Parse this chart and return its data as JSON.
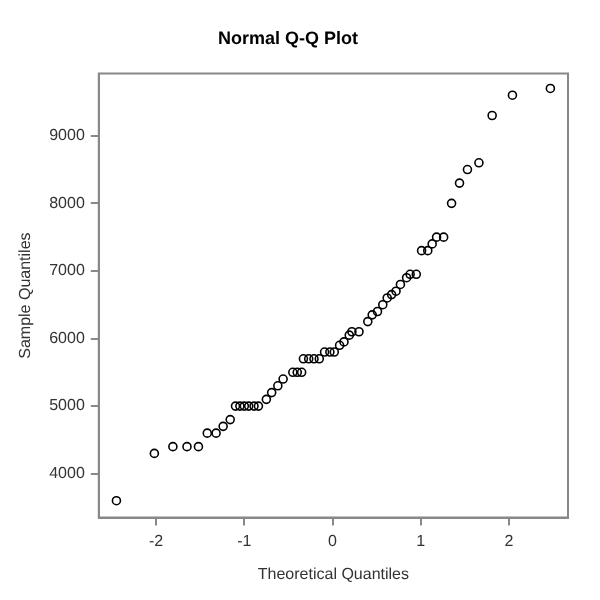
{
  "chart_data": {
    "type": "scatter",
    "title": "Normal Q-Q Plot",
    "xlabel": "Theoretical Quantiles",
    "ylabel": "Sample Quantiles",
    "x": [
      -2.45,
      -2.02,
      -1.81,
      -1.65,
      -1.52,
      -1.42,
      -1.32,
      -1.24,
      -1.16,
      -1.1,
      -1.05,
      -1.0,
      -0.95,
      -0.89,
      -0.84,
      -0.75,
      -0.69,
      -0.62,
      -0.56,
      -0.45,
      -0.4,
      -0.35,
      -0.33,
      -0.27,
      -0.21,
      -0.15,
      -0.09,
      -0.03,
      0.02,
      0.08,
      0.13,
      0.19,
      0.22,
      0.3,
      0.4,
      0.45,
      0.51,
      0.57,
      0.62,
      0.67,
      0.72,
      0.77,
      0.84,
      0.88,
      0.95,
      1.01,
      1.08,
      1.13,
      1.18,
      1.26,
      1.35,
      1.44,
      1.53,
      1.66,
      1.81,
      2.04,
      2.47
    ],
    "series": [
      {
        "color": "#000000",
        "values": [
          3600,
          4300,
          4400,
          4400,
          4400,
          4600,
          4600,
          4700,
          4800,
          5000,
          5000,
          5000,
          5000,
          5000,
          5000,
          5100,
          5200,
          5300,
          5400,
          5500,
          5500,
          5500,
          5700,
          5700,
          5700,
          5700,
          5800,
          5800,
          5800,
          5900,
          5950,
          6050,
          6100,
          6100,
          6250,
          6350,
          6400,
          6500,
          6600,
          6650,
          6700,
          6800,
          6900,
          6950,
          6950,
          7300,
          7300,
          7400,
          7500,
          7500,
          8000,
          8300,
          8500,
          8600,
          9300,
          9600,
          9700
        ]
      }
    ],
    "xlim": [
      -2.65,
      2.67
    ],
    "ylim": [
      3350,
      9920
    ],
    "xticks": [
      -2,
      -1,
      0,
      1,
      2
    ],
    "yticks": [
      4000,
      5000,
      6000,
      7000,
      8000,
      9000
    ],
    "grid": false,
    "legend": false,
    "marker": "circle"
  }
}
